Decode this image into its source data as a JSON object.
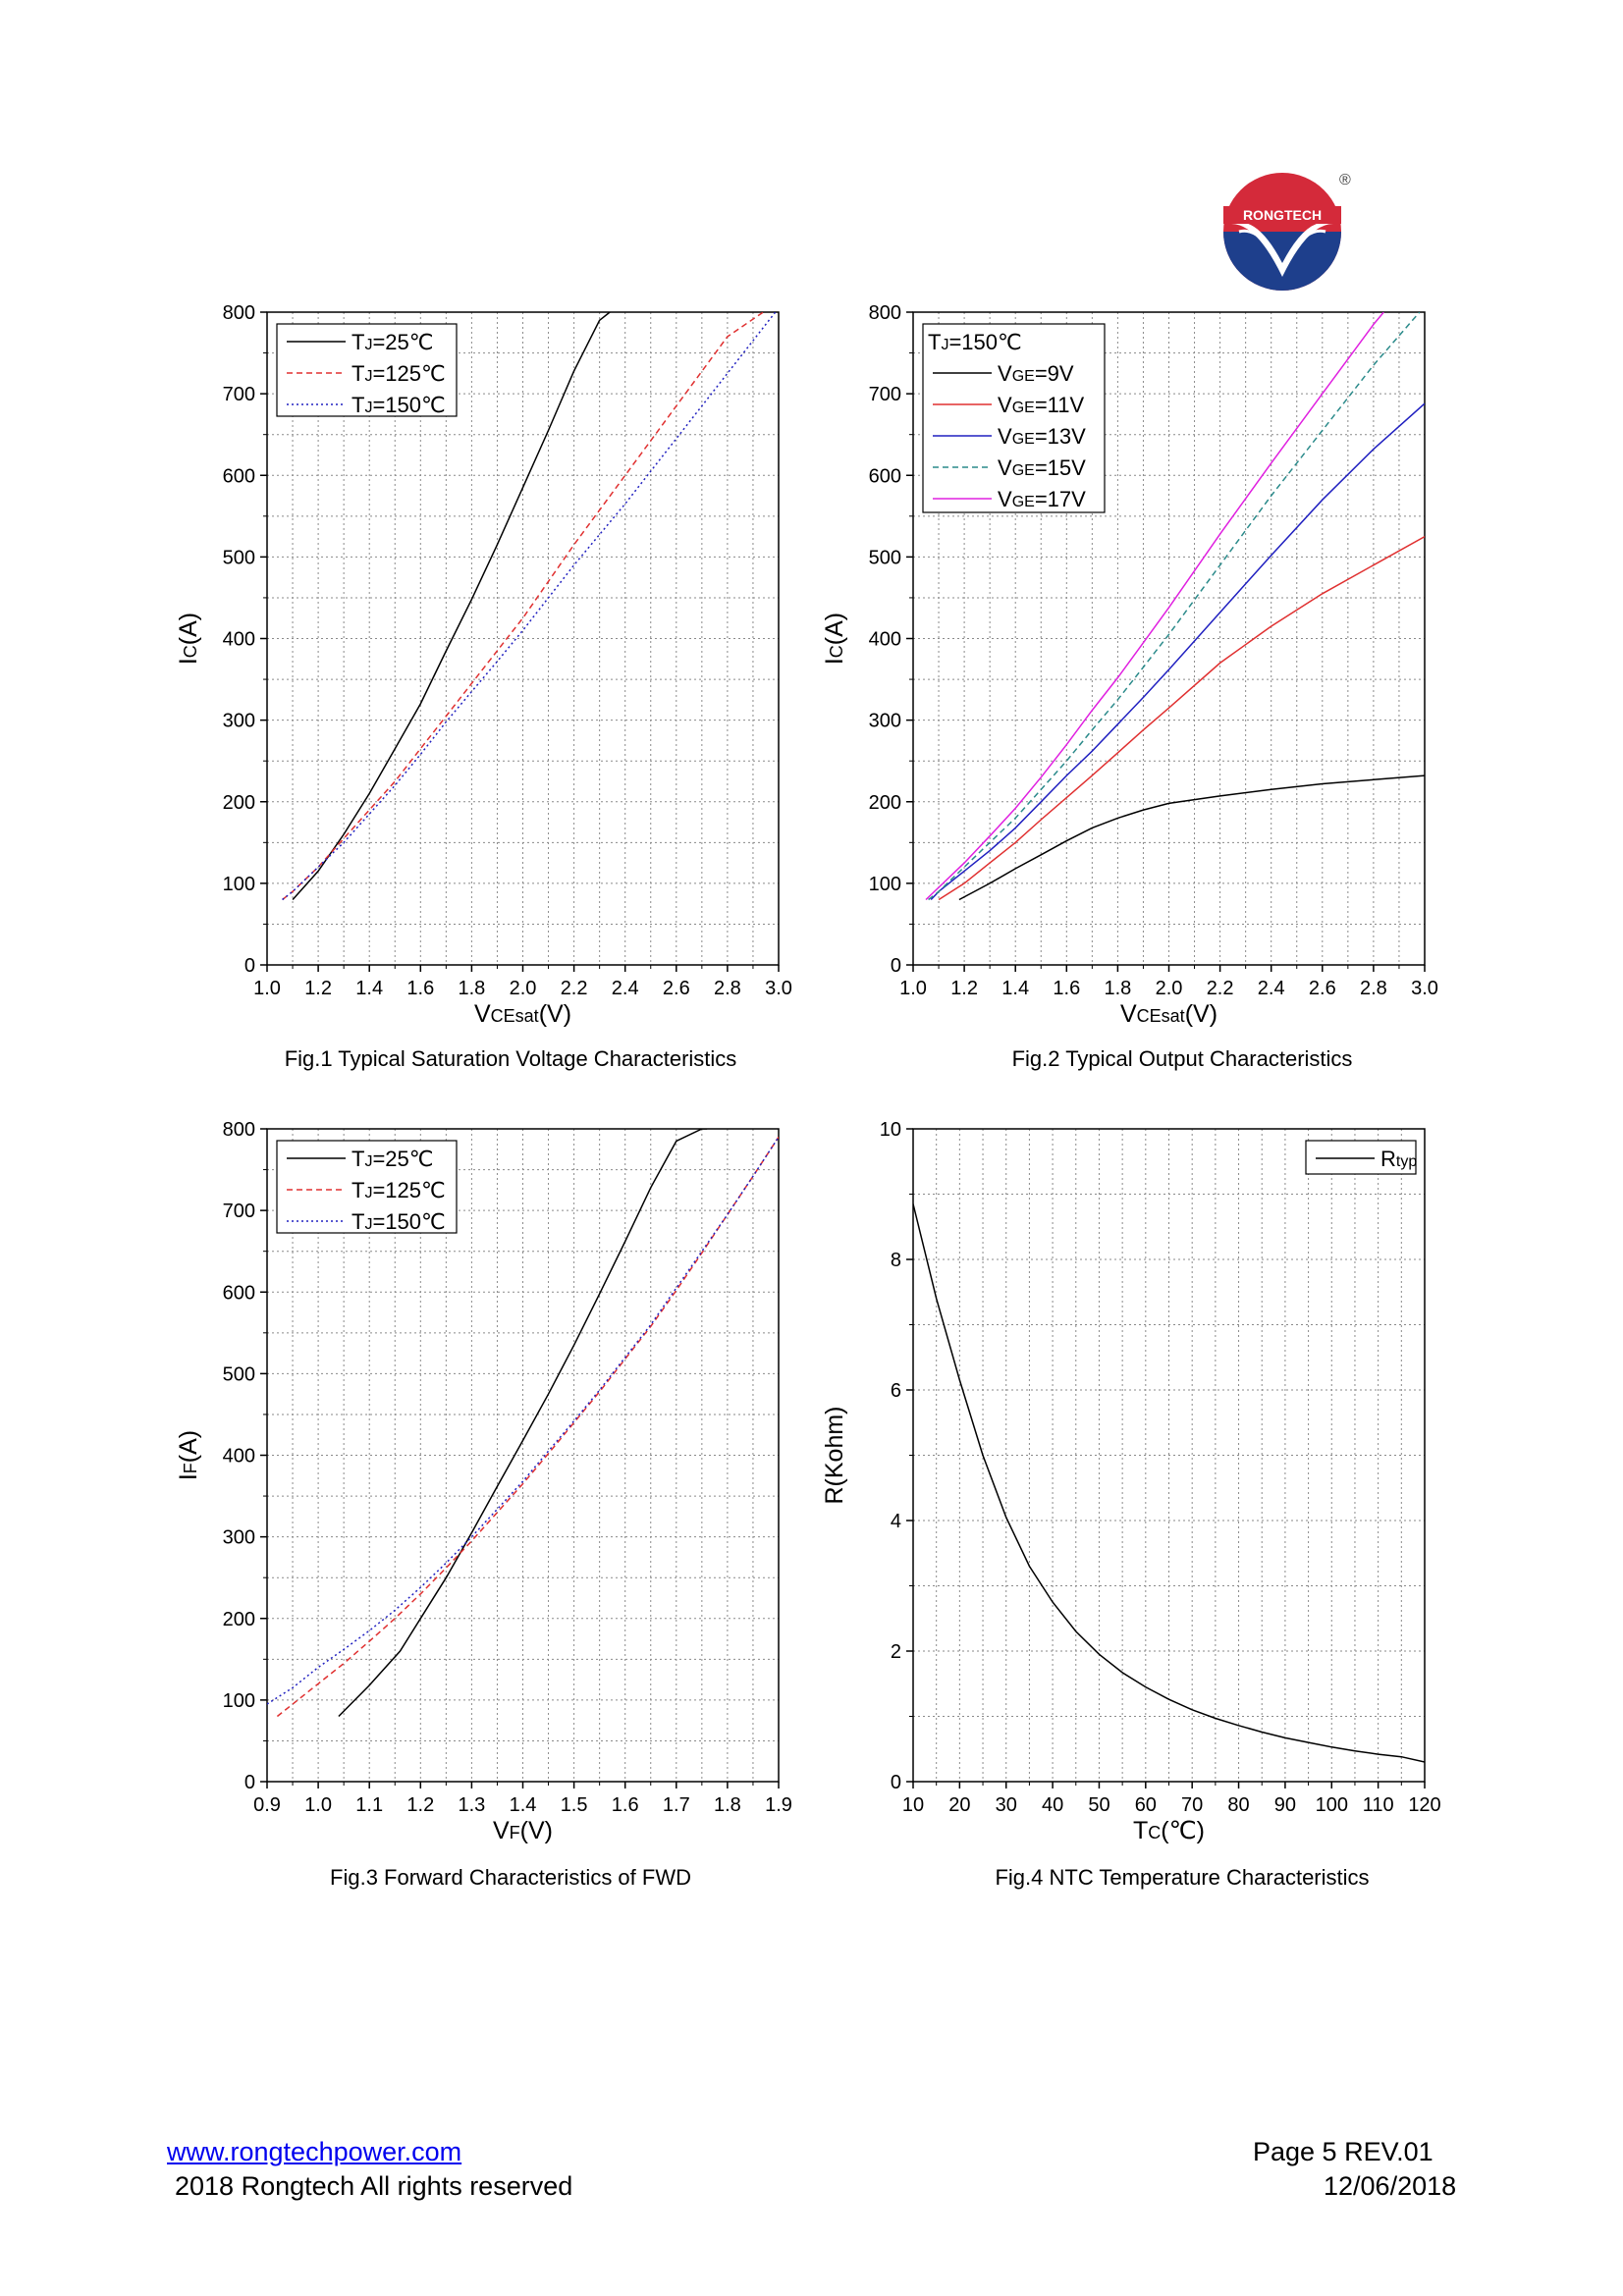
{
  "logo": {
    "text": "RONGTECH",
    "mark": "®"
  },
  "footer": {
    "website": "www.rongtechpower.com",
    "copyright": "2018 Rongtech All rights reserved",
    "page": "Page 5  REV.01",
    "date": "12/06/2018"
  },
  "colors": {
    "black": "#000000",
    "red": "#e03030",
    "blue": "#2020c0",
    "teal": "#2a8a8a",
    "magenta": "#e020e0",
    "grid": "#808080"
  },
  "chart_data": [
    {
      "id": "fig1",
      "type": "line",
      "title": "Fig.1 Typical Saturation Voltage Characteristics",
      "xlabel": {
        "main": "V",
        "sub": "CEsat",
        "tail": "(V)"
      },
      "ylabel": {
        "main": "I",
        "sub": "C",
        "tail": "(A)"
      },
      "xlim": [
        1.0,
        3.0
      ],
      "ylim": [
        0,
        800
      ],
      "xticks": [
        "1.0",
        "1.2",
        "1.4",
        "1.6",
        "1.8",
        "2.0",
        "2.2",
        "2.4",
        "2.6",
        "2.8",
        "3.0"
      ],
      "yticks": [
        "0",
        "100",
        "200",
        "300",
        "400",
        "500",
        "600",
        "700",
        "800"
      ],
      "legend_title": "",
      "series": [
        {
          "name": {
            "main": "T",
            "sub": "J",
            "tail": "=25℃"
          },
          "color": "#000000",
          "dash": "none",
          "x": [
            1.1,
            1.2,
            1.3,
            1.4,
            1.5,
            1.6,
            1.7,
            1.8,
            1.9,
            2.0,
            2.1,
            2.2,
            2.3,
            2.34
          ],
          "y": [
            80,
            115,
            160,
            210,
            265,
            320,
            385,
            448,
            515,
            585,
            655,
            728,
            790,
            800
          ]
        },
        {
          "name": {
            "main": "T",
            "sub": "J",
            "tail": "=125℃"
          },
          "color": "#e03030",
          "dash": "6,4",
          "x": [
            1.06,
            1.1,
            1.2,
            1.3,
            1.4,
            1.5,
            1.6,
            1.7,
            1.8,
            1.9,
            2.0,
            2.2,
            2.4,
            2.6,
            2.8,
            2.94
          ],
          "y": [
            80,
            90,
            120,
            155,
            190,
            225,
            265,
            305,
            345,
            385,
            425,
            515,
            600,
            685,
            770,
            800
          ]
        },
        {
          "name": {
            "main": "T",
            "sub": "J",
            "tail": "=150℃"
          },
          "color": "#2020c0",
          "dash": "2,3",
          "x": [
            1.06,
            1.1,
            1.2,
            1.3,
            1.4,
            1.5,
            1.6,
            1.7,
            1.8,
            1.9,
            2.0,
            2.2,
            2.4,
            2.6,
            2.8,
            3.0
          ],
          "y": [
            80,
            90,
            120,
            150,
            185,
            220,
            258,
            298,
            335,
            372,
            410,
            490,
            565,
            645,
            725,
            805
          ]
        }
      ]
    },
    {
      "id": "fig2",
      "type": "line",
      "title": "Fig.2 Typical Output Characteristics",
      "xlabel": {
        "main": "V",
        "sub": "CEsat",
        "tail": "(V)"
      },
      "ylabel": {
        "main": "I",
        "sub": "C",
        "tail": "(A)"
      },
      "xlim": [
        1.0,
        3.0
      ],
      "ylim": [
        0,
        800
      ],
      "xticks": [
        "1.0",
        "1.2",
        "1.4",
        "1.6",
        "1.8",
        "2.0",
        "2.2",
        "2.4",
        "2.6",
        "2.8",
        "3.0"
      ],
      "yticks": [
        "0",
        "100",
        "200",
        "300",
        "400",
        "500",
        "600",
        "700",
        "800"
      ],
      "legend_title": "TJ=150℃",
      "series": [
        {
          "name": {
            "main": "V",
            "sub": "GE",
            "tail": "=9V"
          },
          "color": "#000000",
          "dash": "none",
          "x": [
            1.18,
            1.3,
            1.4,
            1.5,
            1.6,
            1.7,
            1.8,
            1.9,
            2.0,
            2.2,
            2.4,
            2.6,
            2.8,
            3.0
          ],
          "y": [
            80,
            100,
            118,
            135,
            152,
            168,
            180,
            190,
            198,
            207,
            215,
            222,
            227,
            232
          ]
        },
        {
          "name": {
            "main": "V",
            "sub": "GE",
            "tail": "=11V"
          },
          "color": "#e03030",
          "dash": "none",
          "x": [
            1.1,
            1.2,
            1.3,
            1.4,
            1.5,
            1.6,
            1.7,
            1.8,
            1.9,
            2.0,
            2.2,
            2.4,
            2.6,
            2.8,
            3.0
          ],
          "y": [
            80,
            100,
            125,
            150,
            178,
            205,
            232,
            260,
            288,
            315,
            370,
            415,
            455,
            490,
            525
          ]
        },
        {
          "name": {
            "main": "V",
            "sub": "GE",
            "tail": "=13V"
          },
          "color": "#2020c0",
          "dash": "none",
          "x": [
            1.07,
            1.1,
            1.2,
            1.3,
            1.4,
            1.5,
            1.6,
            1.7,
            1.8,
            1.9,
            2.0,
            2.2,
            2.4,
            2.6,
            2.8,
            3.0
          ],
          "y": [
            80,
            90,
            115,
            140,
            168,
            200,
            232,
            262,
            295,
            328,
            362,
            432,
            502,
            570,
            632,
            688
          ]
        },
        {
          "name": {
            "main": "V",
            "sub": "GE",
            "tail": "=15V"
          },
          "color": "#2a8a8a",
          "dash": "6,4",
          "x": [
            1.06,
            1.1,
            1.2,
            1.3,
            1.4,
            1.5,
            1.6,
            1.7,
            1.8,
            1.9,
            2.0,
            2.2,
            2.4,
            2.6,
            2.8,
            2.98
          ],
          "y": [
            80,
            90,
            120,
            150,
            180,
            215,
            250,
            288,
            325,
            365,
            405,
            490,
            575,
            655,
            735,
            800
          ]
        },
        {
          "name": {
            "main": "V",
            "sub": "GE",
            "tail": "=17V"
          },
          "color": "#e020e0",
          "dash": "none",
          "x": [
            1.05,
            1.1,
            1.2,
            1.3,
            1.4,
            1.5,
            1.6,
            1.7,
            1.8,
            1.9,
            2.0,
            2.2,
            2.4,
            2.6,
            2.8,
            2.84
          ],
          "y": [
            80,
            95,
            125,
            158,
            192,
            230,
            270,
            312,
            352,
            395,
            438,
            528,
            615,
            700,
            785,
            800
          ]
        }
      ]
    },
    {
      "id": "fig3",
      "type": "line",
      "title": "Fig.3 Forward Characteristics of FWD",
      "xlabel": {
        "main": "V",
        "sub": "F",
        "tail": "(V)"
      },
      "ylabel": {
        "main": "I",
        "sub": "F",
        "tail": "(A)"
      },
      "xlim": [
        0.9,
        1.9
      ],
      "ylim": [
        0,
        800
      ],
      "xticks": [
        "0.9",
        "1.0",
        "1.1",
        "1.2",
        "1.3",
        "1.4",
        "1.5",
        "1.6",
        "1.7",
        "1.8",
        "1.9"
      ],
      "yticks": [
        "0",
        "100",
        "200",
        "300",
        "400",
        "500",
        "600",
        "700",
        "800"
      ],
      "legend_title": "",
      "series": [
        {
          "name": {
            "main": "T",
            "sub": "J",
            "tail": "=25℃"
          },
          "color": "#000000",
          "dash": "none",
          "x": [
            1.04,
            1.1,
            1.16,
            1.2,
            1.25,
            1.3,
            1.35,
            1.4,
            1.45,
            1.5,
            1.55,
            1.6,
            1.65,
            1.7,
            1.75,
            1.76
          ],
          "y": [
            80,
            118,
            160,
            200,
            250,
            305,
            362,
            418,
            475,
            535,
            598,
            662,
            728,
            785,
            800,
            800
          ]
        },
        {
          "name": {
            "main": "T",
            "sub": "J",
            "tail": "=125℃"
          },
          "color": "#e03030",
          "dash": "6,4",
          "x": [
            0.92,
            1.0,
            1.05,
            1.1,
            1.15,
            1.2,
            1.25,
            1.3,
            1.35,
            1.4,
            1.45,
            1.5,
            1.55,
            1.6,
            1.65,
            1.7,
            1.75,
            1.8,
            1.85,
            1.9
          ],
          "y": [
            80,
            120,
            145,
            172,
            200,
            230,
            262,
            295,
            330,
            365,
            402,
            440,
            478,
            518,
            558,
            602,
            648,
            695,
            742,
            790
          ]
        },
        {
          "name": {
            "main": "T",
            "sub": "J",
            "tail": "=150℃"
          },
          "color": "#2020c0",
          "dash": "2,3",
          "x": [
            0.9,
            0.95,
            1.0,
            1.05,
            1.1,
            1.15,
            1.2,
            1.25,
            1.3,
            1.35,
            1.4,
            1.45,
            1.5,
            1.55,
            1.6,
            1.65,
            1.7,
            1.75,
            1.8,
            1.85,
            1.9
          ],
          "y": [
            95,
            115,
            140,
            162,
            185,
            210,
            238,
            268,
            300,
            334,
            368,
            405,
            442,
            480,
            520,
            560,
            605,
            650,
            695,
            742,
            790
          ]
        }
      ]
    },
    {
      "id": "fig4",
      "type": "line",
      "title": "Fig.4 NTC Temperature Characteristics",
      "xlabel": {
        "main": "T",
        "sub": "C",
        "tail": "(℃)"
      },
      "ylabel": {
        "main": "R(Kohm)",
        "sub": "",
        "tail": ""
      },
      "xlim": [
        10,
        120
      ],
      "ylim": [
        0,
        10
      ],
      "xticks": [
        "10",
        "20",
        "30",
        "40",
        "50",
        "60",
        "70",
        "80",
        "90",
        "100",
        "110",
        "120"
      ],
      "yticks": [
        "0",
        "2",
        "4",
        "6",
        "8",
        "10"
      ],
      "legend_title": "",
      "series": [
        {
          "name": {
            "main": "R",
            "sub": "typ",
            "tail": ""
          },
          "color": "#000000",
          "dash": "none",
          "x": [
            10,
            15,
            20,
            25,
            30,
            35,
            40,
            45,
            50,
            55,
            60,
            65,
            70,
            75,
            80,
            85,
            90,
            95,
            100,
            105,
            110,
            115,
            120
          ],
          "y": [
            8.85,
            7.4,
            6.15,
            5.0,
            4.05,
            3.3,
            2.75,
            2.3,
            1.95,
            1.67,
            1.45,
            1.26,
            1.1,
            0.97,
            0.86,
            0.76,
            0.67,
            0.6,
            0.53,
            0.47,
            0.42,
            0.38,
            0.3
          ]
        }
      ]
    }
  ]
}
